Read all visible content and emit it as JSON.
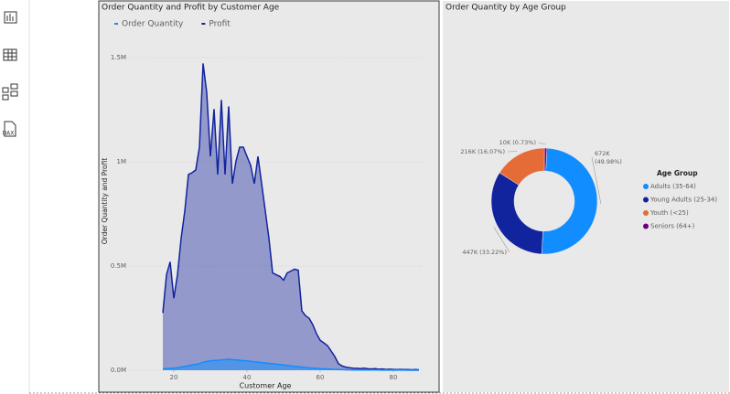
{
  "sidebar": {
    "dax_icon": "DAX"
  },
  "chart_data": [
    {
      "type": "area",
      "title": "Order Quantity and Profit by Customer Age",
      "x_label": "Customer Age",
      "y_label": "Order Quantity and Profit",
      "x": [
        17,
        18,
        19,
        20,
        21,
        22,
        23,
        24,
        25,
        26,
        27,
        28,
        29,
        30,
        31,
        32,
        33,
        34,
        35,
        36,
        37,
        38,
        39,
        40,
        41,
        42,
        43,
        44,
        45,
        46,
        47,
        48,
        49,
        50,
        51,
        52,
        53,
        54,
        55,
        56,
        57,
        58,
        59,
        60,
        61,
        62,
        63,
        64,
        65,
        66,
        67,
        68,
        69,
        70,
        71,
        72,
        73,
        74,
        75,
        76,
        77,
        78,
        79,
        80,
        81,
        82,
        83,
        84,
        85,
        86,
        87
      ],
      "series": [
        {
          "name": "Order Quantity",
          "color": "#118dff",
          "values": [
            6000,
            8000,
            9000,
            10000,
            12000,
            15000,
            18000,
            22000,
            25000,
            28000,
            32000,
            38000,
            42000,
            45000,
            47000,
            48000,
            50000,
            51000,
            52000,
            51000,
            50000,
            48000,
            46000,
            45000,
            43000,
            41000,
            39000,
            37000,
            35000,
            33000,
            31000,
            29000,
            27000,
            25000,
            23000,
            21000,
            19000,
            17000,
            15000,
            13000,
            11000,
            10000,
            9000,
            8000,
            7000,
            6000,
            5000,
            4000,
            3000,
            2500,
            2000,
            1800,
            1500,
            1300,
            1200,
            1100,
            1000,
            900,
            800,
            700,
            600,
            500,
            500,
            400,
            400,
            300,
            300,
            200,
            200,
            100,
            100
          ]
        },
        {
          "name": "Profit",
          "color": "#12239e",
          "values": [
            275000,
            458000,
            520000,
            345000,
            458000,
            633000,
            764000,
            939000,
            948000,
            961000,
            1070000,
            1472000,
            1332000,
            1026000,
            1253000,
            939000,
            1297000,
            939000,
            1266000,
            895000,
            1004000,
            1070000,
            1070000,
            1026000,
            983000,
            895000,
            1026000,
            895000,
            764000,
            633000,
            467000,
            458000,
            450000,
            432000,
            467000,
            476000,
            485000,
            480000,
            284000,
            262000,
            249000,
            218000,
            175000,
            144000,
            131000,
            118000,
            92000,
            66000,
            31000,
            20000,
            15000,
            12000,
            10000,
            9000,
            8000,
            10000,
            7000,
            6000,
            8000,
            5000,
            6000,
            4000,
            5000,
            4000,
            3000,
            4000,
            3000,
            3000,
            2000,
            3000,
            2000
          ]
        }
      ],
      "xlim": [
        8,
        88
      ],
      "xticks": [
        20,
        40,
        60,
        80
      ],
      "ylim": [
        0,
        1500000
      ],
      "yticks": [
        {
          "value": 0,
          "label": "0.0M"
        },
        {
          "value": 500000,
          "label": "0.5M"
        },
        {
          "value": 1000000,
          "label": "1M"
        },
        {
          "value": 1500000,
          "label": "1.5M"
        }
      ],
      "legend": "top-left"
    },
    {
      "type": "donut",
      "title": "Order Quantity by Age Group",
      "legend_title": "Age Group",
      "categories": [
        "Adults (35-64)",
        "Young Adults (25-34)",
        "Youth (<25)",
        "Seniors (64+)"
      ],
      "values": [
        672000,
        447000,
        216000,
        10000
      ],
      "value_labels": [
        "672K (49.98%)",
        "447K (33.22%)",
        "216K (16.07%)",
        "10K (0.73%)"
      ],
      "colors": [
        "#118dff",
        "#12239e",
        "#e66c37",
        "#6b007b"
      ]
    }
  ]
}
